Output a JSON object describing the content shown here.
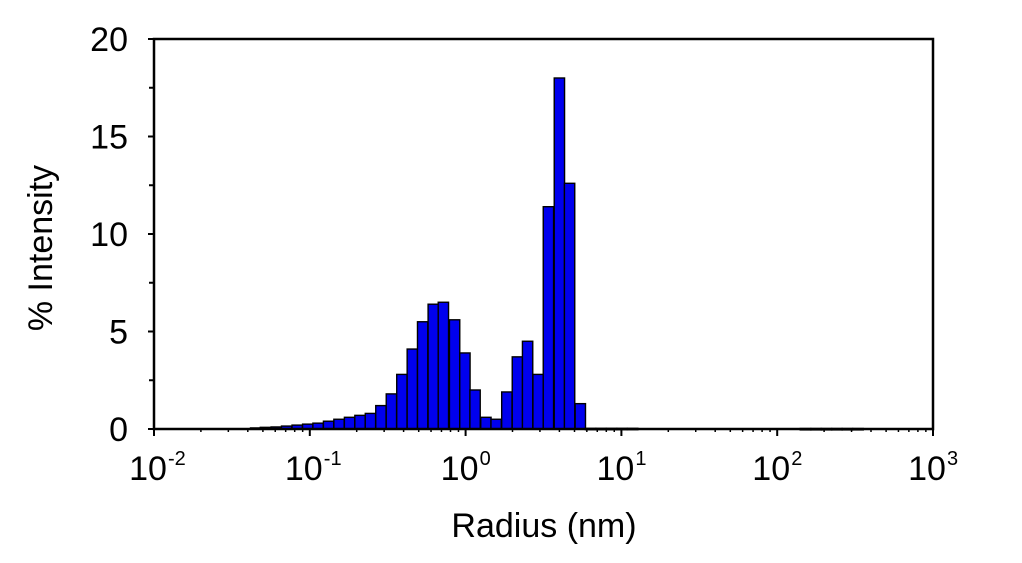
{
  "chart_data": {
    "type": "bar",
    "title": "",
    "xlabel": "Radius (nm)",
    "ylabel": "% Intensity",
    "x_scale": "log",
    "xlim": [
      0.01,
      1000
    ],
    "ylim": [
      0,
      20
    ],
    "grid": false,
    "legend": "none",
    "y_ticks": [
      "0",
      "5",
      "10",
      "15",
      "20"
    ],
    "x_ticks": [
      {
        "base": "10",
        "exp": "-2"
      },
      {
        "base": "10",
        "exp": "-1"
      },
      {
        "base": "10",
        "exp": "0"
      },
      {
        "base": "10",
        "exp": "1"
      },
      {
        "base": "10",
        "exp": "2"
      },
      {
        "base": "10",
        "exp": "3"
      }
    ],
    "bar_color": "#0000ee",
    "series": [
      {
        "x": [
          0.045,
          0.052,
          0.061,
          0.071,
          0.083,
          0.097,
          0.113,
          0.132,
          0.154,
          0.18,
          0.21,
          0.245,
          0.286,
          0.334,
          0.39,
          0.455,
          0.53,
          0.62,
          0.72,
          0.85,
          0.99,
          1.15,
          1.35,
          1.57,
          1.84,
          2.15,
          2.5,
          2.92,
          3.4,
          4.0,
          4.65,
          5.45,
          6.35,
          7.4,
          8.65,
          10.1,
          11.8,
          152,
          178,
          207,
          242,
          282,
          330
        ],
        "values": [
          0.05,
          0.08,
          0.1,
          0.15,
          0.2,
          0.25,
          0.3,
          0.4,
          0.5,
          0.6,
          0.7,
          0.8,
          1.2,
          1.8,
          2.8,
          4.1,
          5.5,
          6.4,
          6.5,
          5.6,
          3.9,
          2.0,
          0.6,
          0.5,
          1.9,
          3.7,
          4.5,
          2.8,
          11.4,
          18.0,
          12.6,
          1.3,
          0.03,
          0.03,
          0.03,
          0.03,
          0.03,
          0.02,
          0.02,
          0.02,
          0.02,
          0.02,
          0.02
        ]
      }
    ]
  }
}
